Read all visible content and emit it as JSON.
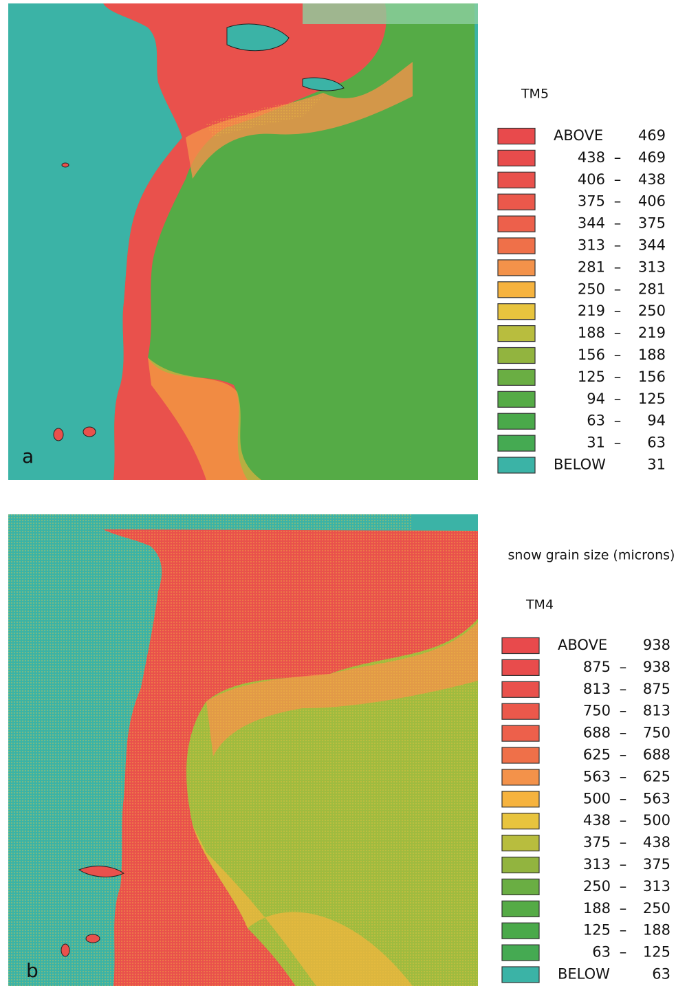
{
  "panels": [
    {
      "label": "a",
      "legend": {
        "title": "TM5",
        "separator": "–",
        "entries": [
          {
            "name": "ABOVE",
            "value": 469,
            "color": "#e84a4c"
          },
          {
            "low": 438,
            "high": 469,
            "color": "#e84c4c"
          },
          {
            "low": 406,
            "high": 438,
            "color": "#e9514c"
          },
          {
            "low": 375,
            "high": 406,
            "color": "#eb584b"
          },
          {
            "low": 344,
            "high": 375,
            "color": "#ed604b"
          },
          {
            "low": 313,
            "high": 344,
            "color": "#ef7049"
          },
          {
            "low": 281,
            "high": 313,
            "color": "#f3924a"
          },
          {
            "low": 250,
            "high": 281,
            "color": "#f6b33e"
          },
          {
            "low": 219,
            "high": 250,
            "color": "#e8c43e"
          },
          {
            "low": 188,
            "high": 219,
            "color": "#b8bd3e"
          },
          {
            "low": 156,
            "high": 188,
            "color": "#92b43f"
          },
          {
            "low": 125,
            "high": 156,
            "color": "#6aae43"
          },
          {
            "low": 94,
            "high": 125,
            "color": "#55ab46"
          },
          {
            "low": 63,
            "high": 94,
            "color": "#4aa94a"
          },
          {
            "low": 31,
            "high": 63,
            "color": "#45aa52"
          },
          {
            "name": "BELOW",
            "value": 31,
            "color": "#3bb3a6"
          }
        ]
      }
    },
    {
      "label": "b",
      "caption": "snow grain size (microns)",
      "legend": {
        "title": "TM4",
        "separator": "–",
        "entries": [
          {
            "name": "ABOVE",
            "value": 938,
            "color": "#e84a4c"
          },
          {
            "low": 875,
            "high": 938,
            "color": "#e84c4c"
          },
          {
            "low": 813,
            "high": 875,
            "color": "#e9514c"
          },
          {
            "low": 750,
            "high": 813,
            "color": "#eb584b"
          },
          {
            "low": 688,
            "high": 750,
            "color": "#ed604b"
          },
          {
            "low": 625,
            "high": 688,
            "color": "#ef7049"
          },
          {
            "low": 563,
            "high": 625,
            "color": "#f3924a"
          },
          {
            "low": 500,
            "high": 563,
            "color": "#f6b33e"
          },
          {
            "low": 438,
            "high": 500,
            "color": "#e8c43e"
          },
          {
            "low": 375,
            "high": 438,
            "color": "#b8bd3e"
          },
          {
            "low": 313,
            "high": 375,
            "color": "#92b43f"
          },
          {
            "low": 250,
            "high": 313,
            "color": "#6aae43"
          },
          {
            "low": 188,
            "high": 250,
            "color": "#55ab46"
          },
          {
            "low": 125,
            "high": 188,
            "color": "#4aa94a"
          },
          {
            "low": 63,
            "high": 125,
            "color": "#45aa52"
          },
          {
            "name": "BELOW",
            "value": 63,
            "color": "#3bb3a6"
          }
        ]
      }
    }
  ]
}
